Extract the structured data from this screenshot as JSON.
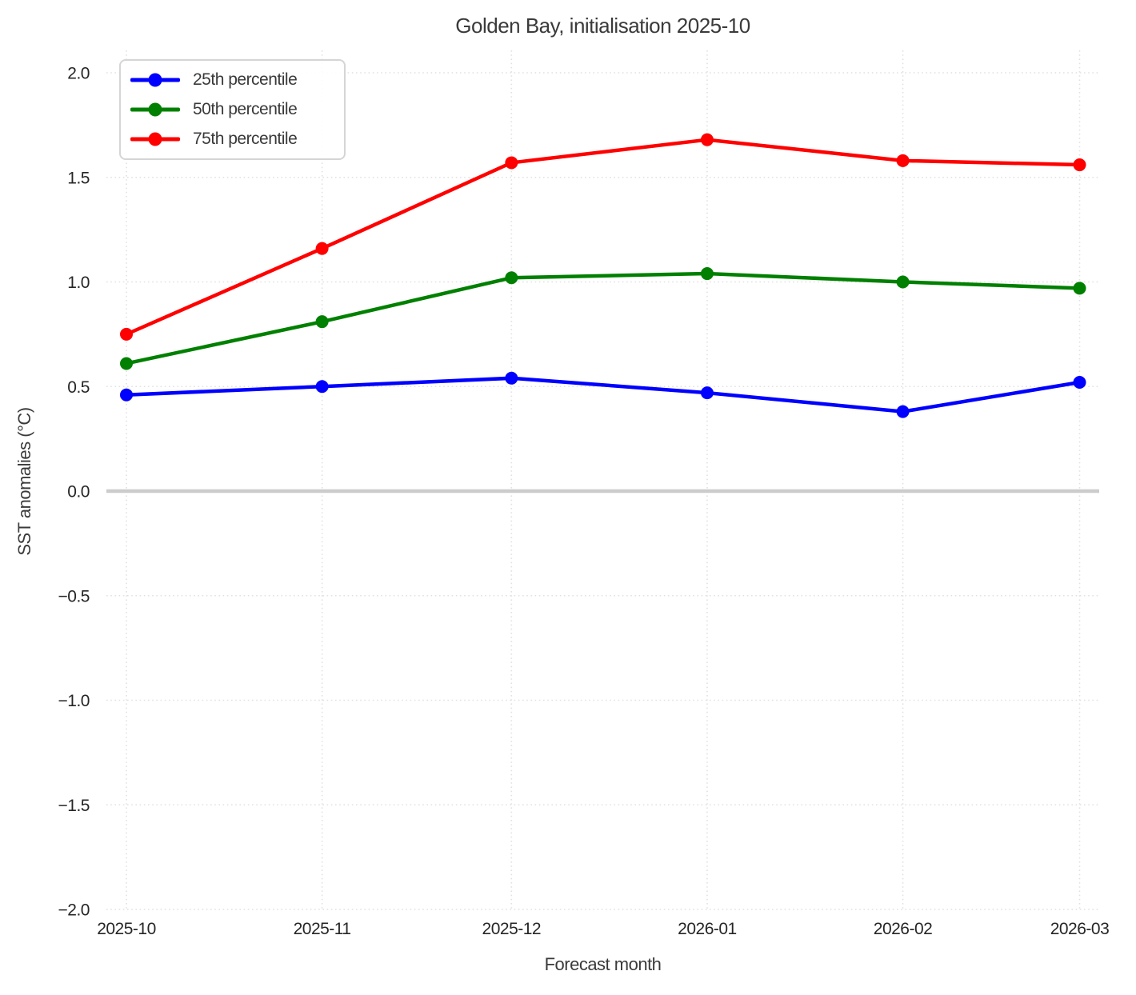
{
  "chart_data": {
    "type": "line",
    "title": "Golden Bay, initialisation 2025-10",
    "xlabel": "Forecast month",
    "ylabel": "SST anomalies (°C)",
    "categories": [
      "2025-10",
      "2025-11",
      "2025-12",
      "2026-01",
      "2026-02",
      "2026-03"
    ],
    "x_day_offsets": [
      0,
      31,
      61,
      92,
      123,
      151
    ],
    "series": [
      {
        "name": "25th percentile",
        "color": "#0000ff",
        "values": [
          0.46,
          0.5,
          0.54,
          0.47,
          0.38,
          0.52
        ]
      },
      {
        "name": "50th percentile",
        "color": "#008000",
        "values": [
          0.61,
          0.81,
          1.02,
          1.04,
          1.0,
          0.97
        ]
      },
      {
        "name": "75th percentile",
        "color": "#ff0000",
        "values": [
          0.75,
          1.16,
          1.57,
          1.68,
          1.58,
          1.56
        ]
      }
    ],
    "yticks": [
      2.0,
      1.5,
      1.0,
      0.5,
      0.0,
      -0.5,
      -1.0,
      -1.5,
      -2.0
    ],
    "ytick_labels": [
      "2.0",
      "1.5",
      "1.0",
      "0.5",
      "0.0",
      "−0.5",
      "−1.0",
      "−1.5",
      "−2.0"
    ],
    "ylim": [
      -2.0,
      2.11
    ],
    "zero_line": 0.0,
    "grid": "dotted",
    "legend_position": "upper left",
    "marker": "circle"
  }
}
